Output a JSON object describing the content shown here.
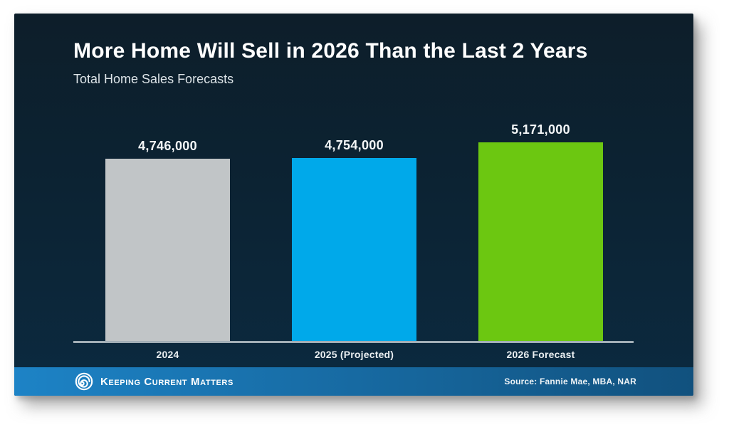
{
  "chart_data": {
    "type": "bar",
    "title": "More Home Will Sell in 2026 Than the Last 2 Years",
    "subtitle": "Total Home Sales Forecasts",
    "categories": [
      "2024",
      "2025 (Projected)",
      "2026 Forecast"
    ],
    "values": [
      4746000,
      4754000,
      5171000
    ],
    "value_labels": [
      "4,746,000",
      "4,754,000",
      "5,171,000"
    ],
    "bar_colors": [
      "#c1c5c7",
      "#00a9ea",
      "#6cc711"
    ],
    "ylim": [
      0,
      5171000
    ],
    "grid": false,
    "legend": "none",
    "background_color": "#0c2435",
    "axis_line_color": "#a2aeb6"
  },
  "footer": {
    "brand": "Keeping Current Matters",
    "source": "Source: Fannie Mae, MBA, NAR",
    "bar_gradient_left": "#1d83c6",
    "bar_gradient_right": "#11517e"
  }
}
